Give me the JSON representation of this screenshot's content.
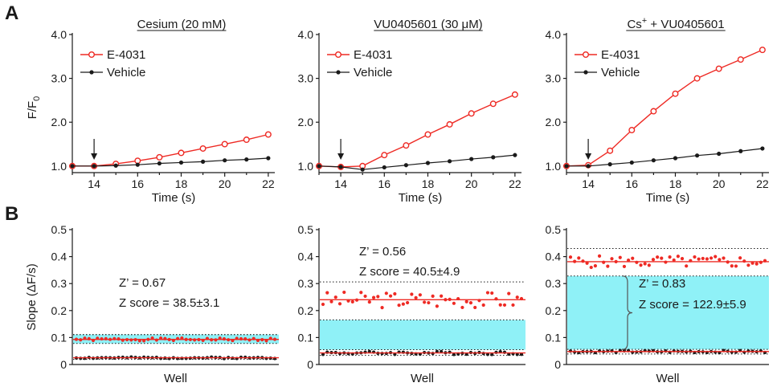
{
  "panel_labels": [
    "A",
    "B"
  ],
  "colors": {
    "e4031": "#ee2a24",
    "vehicle": "#1a1a1a",
    "window": "#8ff1f7"
  },
  "chart_data": [
    {
      "type": "line",
      "title": "Cesium (20 mM)",
      "xlabel": "Time (s)",
      "ylabel": "F/F0",
      "xlim": [
        13,
        22.3
      ],
      "ylim": [
        0.85,
        4.0
      ],
      "xticks": [
        "14",
        "16",
        "18",
        "20",
        "22"
      ],
      "yticks": [
        "1.0",
        "2.0",
        "3.0",
        "4.0"
      ],
      "legend": [
        "E-4031",
        "Vehicle"
      ],
      "arrow_x": 14,
      "series": [
        {
          "name": "E-4031",
          "x": [
            13,
            14,
            15,
            16,
            17,
            18,
            19,
            20,
            21,
            22
          ],
          "y": [
            1.0,
            1.0,
            1.05,
            1.12,
            1.2,
            1.3,
            1.4,
            1.5,
            1.6,
            1.72
          ]
        },
        {
          "name": "Vehicle",
          "x": [
            13,
            14,
            15,
            16,
            17,
            18,
            19,
            20,
            21,
            22
          ],
          "y": [
            1.0,
            1.0,
            1.01,
            1.03,
            1.06,
            1.08,
            1.1,
            1.13,
            1.15,
            1.18
          ]
        }
      ]
    },
    {
      "type": "line",
      "title": "VU0405601 (30 μM)",
      "xlabel": "Time (s)",
      "ylabel": "",
      "xlim": [
        13,
        22.3
      ],
      "ylim": [
        0.85,
        4.0
      ],
      "xticks": [
        "14",
        "16",
        "18",
        "20",
        "22"
      ],
      "yticks": [
        "1.0",
        "2.0",
        "3.0",
        "4.0"
      ],
      "legend": [
        "E-4031",
        "Vehicle"
      ],
      "arrow_x": 14,
      "series": [
        {
          "name": "E-4031",
          "x": [
            13,
            14,
            15,
            16,
            17,
            18,
            19,
            20,
            21,
            22
          ],
          "y": [
            1.0,
            0.98,
            1.0,
            1.25,
            1.47,
            1.72,
            1.95,
            2.2,
            2.42,
            2.63
          ]
        },
        {
          "name": "Vehicle",
          "x": [
            13,
            14,
            15,
            16,
            17,
            18,
            19,
            20,
            21,
            22
          ],
          "y": [
            1.0,
            0.98,
            0.92,
            0.97,
            1.02,
            1.07,
            1.11,
            1.16,
            1.2,
            1.25
          ]
        }
      ]
    },
    {
      "type": "line",
      "title": "Cs+ + VU0405601",
      "xlabel": "Time (s)",
      "ylabel": "",
      "xlim": [
        13,
        22.3
      ],
      "ylim": [
        0.85,
        4.0
      ],
      "xticks": [
        "14",
        "16",
        "18",
        "20",
        "22"
      ],
      "yticks": [
        "1.0",
        "2.0",
        "3.0",
        "4.0"
      ],
      "legend": [
        "E-4031",
        "Vehicle"
      ],
      "arrow_x": 14,
      "series": [
        {
          "name": "E-4031",
          "x": [
            13,
            14,
            15,
            16,
            17,
            18,
            19,
            20,
            21,
            22
          ],
          "y": [
            1.0,
            1.02,
            1.35,
            1.82,
            2.25,
            2.65,
            3.0,
            3.22,
            3.43,
            3.65
          ]
        },
        {
          "name": "Vehicle",
          "x": [
            13,
            14,
            15,
            16,
            17,
            18,
            19,
            20,
            21,
            22
          ],
          "y": [
            1.0,
            1.0,
            1.04,
            1.08,
            1.13,
            1.18,
            1.24,
            1.28,
            1.34,
            1.4
          ]
        }
      ]
    },
    {
      "type": "scatter",
      "title": "",
      "xlabel": "Well",
      "ylabel": "Slope (ΔF/s)",
      "ylim": [
        0,
        0.5
      ],
      "yticks": [
        "0",
        "0.1",
        "0.2",
        "0.3",
        "0.4",
        "0.5"
      ],
      "annotations": [
        "Z’ = 0.67",
        "Z score = 38.5±3.1"
      ],
      "positive": {
        "mean": 0.093,
        "sd": 0.006,
        "n": 48,
        "spread": 0.005,
        "seed": 1
      },
      "negative": {
        "mean": 0.025,
        "sd": 0.002,
        "n": 48,
        "spread": 0.003,
        "seed": 2
      },
      "window": [
        0.078,
        0.111
      ]
    },
    {
      "type": "scatter",
      "title": "",
      "xlabel": "Well",
      "ylabel": "",
      "ylim": [
        0,
        0.5
      ],
      "yticks": [
        "0",
        "0.1",
        "0.2",
        "0.3",
        "0.4",
        "0.5"
      ],
      "annotations": [
        "Z’ = 0.56",
        "Z score = 40.5±4.9"
      ],
      "positive": {
        "mean": 0.24,
        "sd": 0.022,
        "n": 48,
        "spread": 0.03,
        "seed": 3
      },
      "negative": {
        "mean": 0.043,
        "sd": 0.003,
        "n": 48,
        "spread": 0.006,
        "seed": 4
      },
      "window": [
        0.055,
        0.165
      ],
      "upper_limit": 0.306
    },
    {
      "type": "scatter",
      "title": "",
      "xlabel": "Well",
      "ylabel": "",
      "ylim": [
        0,
        0.5
      ],
      "yticks": [
        "0",
        "0.1",
        "0.2",
        "0.3",
        "0.4",
        "0.5"
      ],
      "annotations": [
        "Z’ = 0.83",
        "Z score = 122.9±5.9"
      ],
      "positive": {
        "mean": 0.381,
        "sd": 0.015,
        "n": 48,
        "spread": 0.022,
        "seed": 5
      },
      "negative": {
        "mean": 0.048,
        "sd": 0.003,
        "n": 48,
        "spread": 0.004,
        "seed": 6
      },
      "window": [
        0.056,
        0.328
      ],
      "upper_limit": 0.43
    }
  ]
}
